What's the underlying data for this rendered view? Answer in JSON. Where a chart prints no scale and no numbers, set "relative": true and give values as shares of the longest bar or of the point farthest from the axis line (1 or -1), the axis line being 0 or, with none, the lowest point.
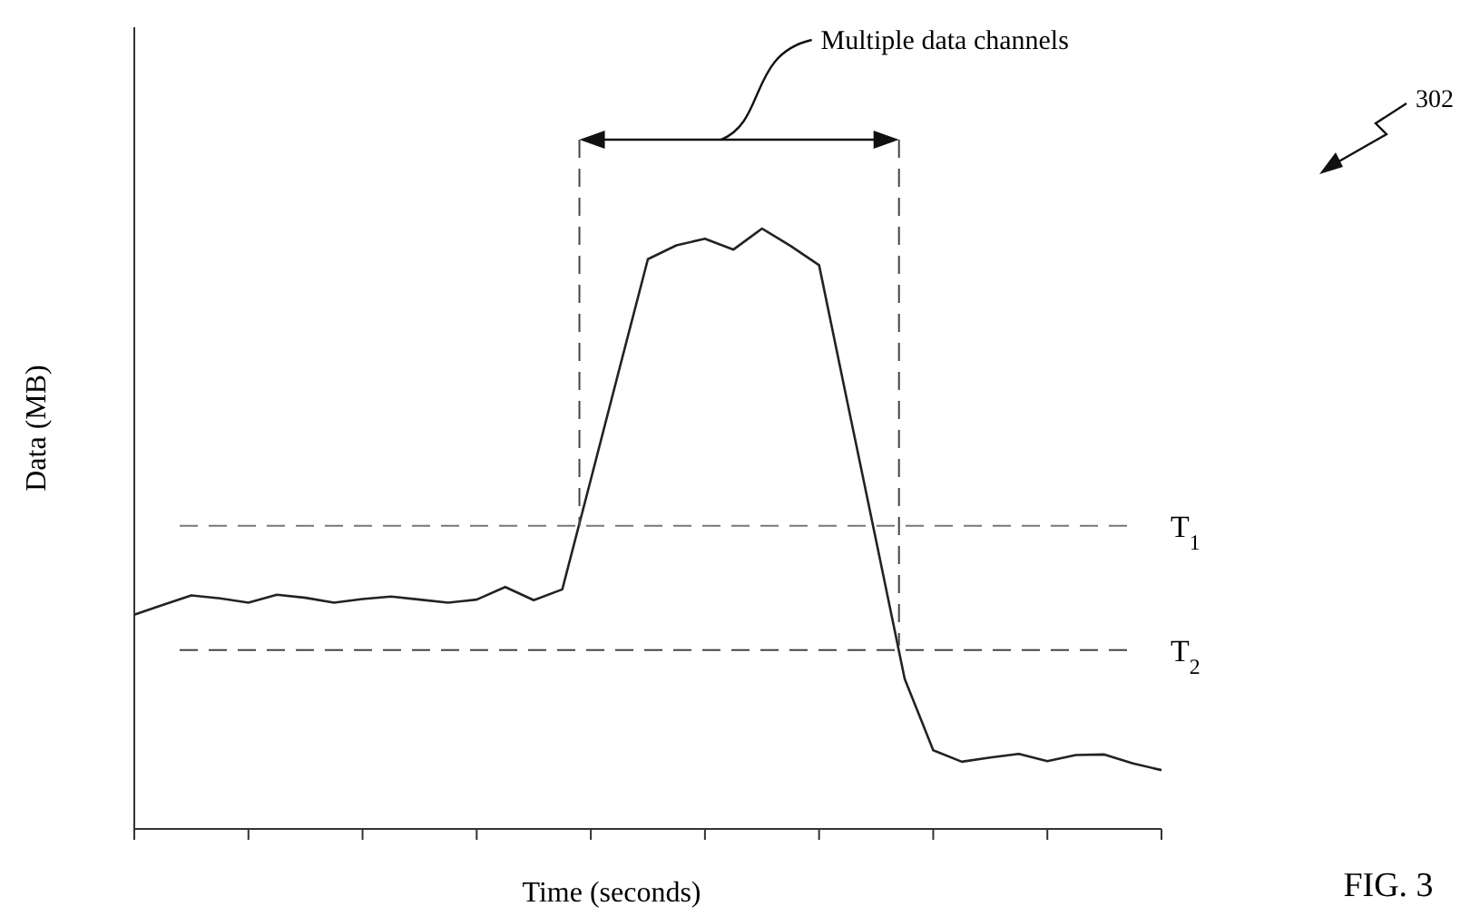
{
  "chart_data": {
    "type": "line",
    "relative": true,
    "xlabel": "Time (seconds)",
    "ylabel": "Data (MB)",
    "categories": [
      null,
      null,
      null,
      null,
      null,
      null,
      null,
      null,
      null,
      null,
      null,
      null,
      null,
      null,
      null,
      null,
      null,
      null,
      null,
      null,
      null,
      null,
      null,
      null,
      null,
      null,
      null,
      null,
      null,
      null,
      null,
      null,
      null,
      null,
      null,
      null,
      null
    ],
    "values": [
      0.357,
      0.373,
      0.389,
      0.384,
      0.377,
      0.39,
      0.385,
      0.377,
      0.383,
      0.387,
      0.382,
      0.377,
      0.382,
      0.403,
      0.381,
      0.399,
      0.582,
      0.766,
      0.949,
      0.972,
      0.983,
      0.965,
      1,
      0.971,
      0.939,
      0.709,
      0.48,
      0.25,
      0.131,
      0.112,
      0.119,
      0.125,
      0.113,
      0.123,
      0.124,
      0.109,
      0.098
    ],
    "color": "#222222",
    "marker": "none",
    "line_style": "solid",
    "ref_lines": [
      {
        "axis": "y",
        "value": 0.505,
        "label": "T$_{1}$",
        "line_style": "dashed",
        "color": "#777777"
      },
      {
        "axis": "y",
        "value": 0.298,
        "label": "T$_{2}$",
        "line_style": "dashed",
        "color": "#444444"
      }
    ],
    "annotations": [
      "Multiple data channels",
      "302",
      "FIG. 3"
    ]
  }
}
